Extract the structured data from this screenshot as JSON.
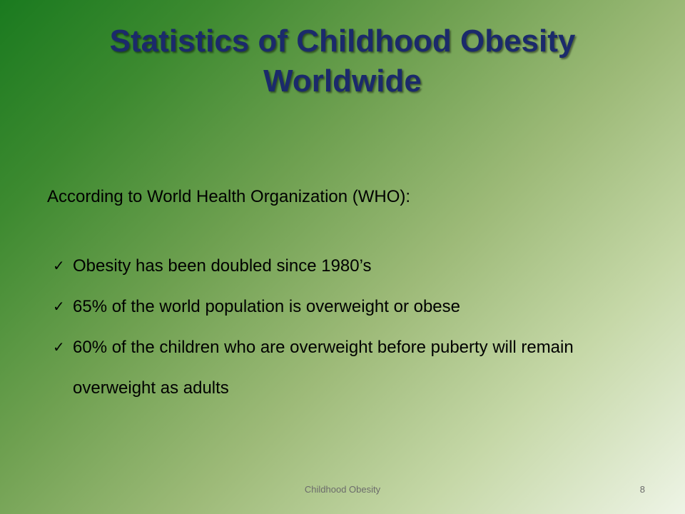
{
  "slide": {
    "title_line1": "Statistics of Childhood Obesity",
    "title_line2": "Worldwide",
    "intro": "According to World Health Organization (WHO):",
    "bullets": [
      {
        "icon": "checkmark-icon",
        "text": "Obesity has been doubled since 1980’s"
      },
      {
        "icon": "checkmark-icon",
        "text": "65% of the world population is overweight or obese"
      },
      {
        "icon": "checkmark-icon",
        "text": "60% of the children who are overweight before puberty will remain overweight as adults"
      }
    ],
    "check_glyph": "✓",
    "footer_text": "Childhood Obesity",
    "page_number": "8"
  },
  "colors": {
    "title": "#1b2a6b",
    "body_text": "#000000",
    "footer_text": "#6b6b6b",
    "background_start": "#1a7a1f",
    "background_end": "#eef4e6"
  }
}
